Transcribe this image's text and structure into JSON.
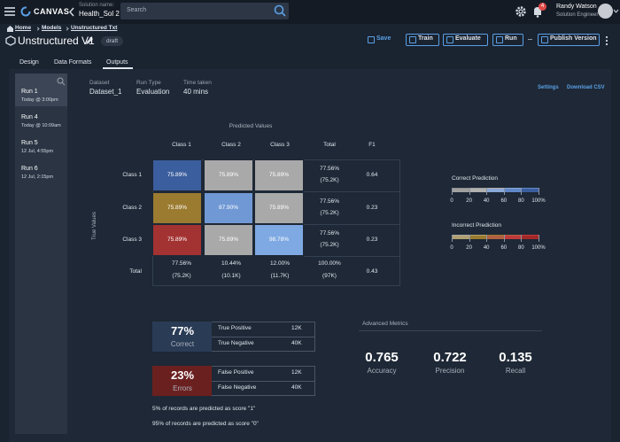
{
  "topbar": {
    "logo": "CANVAS",
    "solution_label": "Solution name:",
    "solution_name": "Health_Sol 2",
    "search_placeholder": "Search",
    "notification_count": "4",
    "user_name": "Randy Watson",
    "user_role": "Solution Engineer"
  },
  "breadcrumb": [
    "Home",
    "Models",
    "Unstructured Txt"
  ],
  "header": {
    "title": "Unstructured V1",
    "status": "draft",
    "actions": [
      "Save",
      "Train",
      "Evaluate",
      "Run",
      "Publish Version"
    ]
  },
  "tabs": [
    "Design",
    "Data Formats",
    "Outputs"
  ],
  "runs": [
    {
      "name": "Run 1",
      "time": "Today @ 3:00pm"
    },
    {
      "name": "Run 4",
      "time": "Today @ 10:09am"
    },
    {
      "name": "Run 5",
      "time": "12 Jul, 4:55pm"
    },
    {
      "name": "Run 6",
      "time": "12 Jul, 2:15pm"
    }
  ],
  "info": [
    {
      "label": "Dataset",
      "value": "Dataset_1"
    },
    {
      "label": "Run Type",
      "value": "Evaluation"
    },
    {
      "label": "Time taken",
      "value": "40 mins"
    }
  ],
  "links": [
    "Settings",
    "Download CSV"
  ],
  "matrix": {
    "title": "Predicted Values",
    "y_label": "True Values",
    "columns": [
      "Class 1",
      "Class 2",
      "Class 3",
      "Total",
      "F1"
    ],
    "rows": [
      {
        "label": "Class 1",
        "cells": [
          "75.89%",
          "75.89%",
          "75.89%"
        ],
        "total": [
          "77.56%",
          "(75.2K)"
        ],
        "f1": "0.64"
      },
      {
        "label": "Class 2",
        "cells": [
          "75.89%",
          "87.90%",
          "75.89%"
        ],
        "total": [
          "77.56%",
          "(75.2K)"
        ],
        "f1": "0.23"
      },
      {
        "label": "Class 3",
        "cells": [
          "75.89%",
          "75.89%",
          "98.78%"
        ],
        "total": [
          "77.56%",
          "(75.2K)"
        ],
        "f1": "0.23"
      }
    ],
    "total_row": {
      "label": "Total",
      "cells": [
        [
          "77.56%",
          "(75.2K)"
        ],
        [
          "10.44%",
          "(10.1K)"
        ],
        [
          "12.00%",
          "(11.7K)"
        ],
        [
          "100.00%",
          "(97K)"
        ]
      ],
      "f1": "0.43"
    }
  },
  "legends": [
    {
      "title": "Correct Prediction",
      "ticks": [
        "0",
        "20",
        "40",
        "60",
        "80",
        "100%"
      ]
    },
    {
      "title": "Incorrect Prediction",
      "ticks": [
        "0",
        "20",
        "40",
        "60",
        "80",
        "100%"
      ]
    }
  ],
  "summary": [
    {
      "pct": "77%",
      "label": "Correct",
      "rows": [
        [
          "True Positive",
          "12K"
        ],
        [
          "True Negative",
          "40K"
        ]
      ]
    },
    {
      "pct": "23%",
      "label": "Errors",
      "rows": [
        [
          "False Positive",
          "12K"
        ],
        [
          "False Negative",
          "40K"
        ]
      ]
    }
  ],
  "notes": [
    "5% of records are predicted as score \"1\"",
    "95% of records are predicted as score \"0\""
  ],
  "advanced": {
    "title": "Advanced Metrics",
    "metrics": [
      {
        "value": "0.765",
        "label": "Accuracy"
      },
      {
        "value": "0.722",
        "label": "Precision"
      },
      {
        "value": "0.135",
        "label": "Recall"
      }
    ]
  }
}
